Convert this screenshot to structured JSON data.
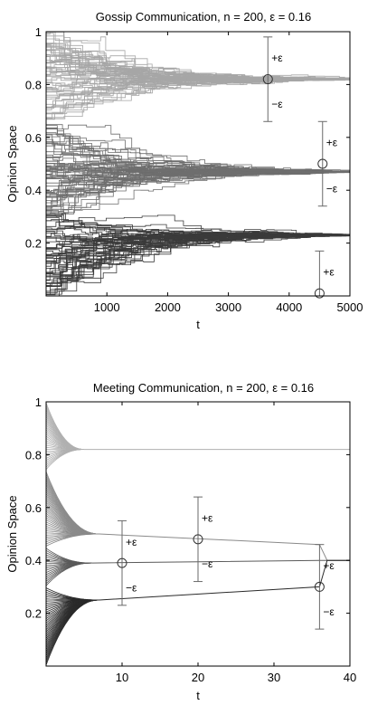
{
  "chart_data": [
    {
      "type": "line",
      "title": "Gossip Communication, n = 200, ε = 0.16",
      "xlabel": "t",
      "ylabel": "Opinion Space",
      "xlim": [
        0,
        5000
      ],
      "ylim": [
        0,
        1
      ],
      "x_ticks": [
        "1000",
        "2000",
        "3000",
        "4000",
        "5000"
      ],
      "y_ticks": [
        "0.2",
        "0.4",
        "0.6",
        "0.8",
        "1"
      ],
      "grid": false,
      "n_agents": 200,
      "clusters": [
        {
          "final_opinion": 0.82,
          "initial_range": [
            0.66,
            1.0
          ],
          "line_color": "#a6a6a6"
        },
        {
          "final_opinion": 0.47,
          "initial_range": [
            0.31,
            0.66
          ],
          "line_color": "#6e6e6e"
        },
        {
          "final_opinion": 0.23,
          "initial_range": [
            0.0,
            0.31
          ],
          "line_color": "#3a3a3a"
        }
      ],
      "interval_annotations": [
        {
          "x": 3650,
          "center": 0.82,
          "upper_label": "+ε",
          "lower_label": "−ε"
        },
        {
          "x": 4550,
          "center": 0.5,
          "upper_label": "+ε",
          "lower_label": "−ε"
        },
        {
          "x": 4500,
          "center": 0.01,
          "upper_label": "+ε",
          "lower_label": ""
        }
      ]
    },
    {
      "type": "line",
      "title": "Meeting Communication, n = 200, ε = 0.16",
      "xlabel": "t",
      "ylabel": "Opinion Space",
      "xlim": [
        0,
        40
      ],
      "ylim": [
        0,
        1
      ],
      "x_ticks": [
        "10",
        "20",
        "30",
        "40"
      ],
      "y_ticks": [
        "0.2",
        "0.4",
        "0.6",
        "0.8",
        "1"
      ],
      "grid": false,
      "n_agents": 200,
      "clusters": [
        {
          "final_opinion": 0.82,
          "converge_t": 5,
          "initial_range": [
            0.74,
            1.0
          ],
          "line_color": "#b0b0b0"
        },
        {
          "final_opinion": 0.5,
          "converge_t": 7,
          "initial_range": [
            0.45,
            0.74
          ],
          "line_color": "#8a8a8a",
          "later": [
            [
              7,
              0.5
            ],
            [
              36,
              0.46
            ]
          ]
        },
        {
          "final_opinion": 0.39,
          "converge_t": 6,
          "initial_range": [
            0.3,
            0.45
          ],
          "line_color": "#5a5a5a",
          "later": [
            [
              6,
              0.39
            ],
            [
              36,
              0.4
            ]
          ]
        },
        {
          "final_opinion": 0.25,
          "converge_t": 7,
          "initial_range": [
            0.0,
            0.3
          ],
          "line_color": "#2a2a2a",
          "later": [
            [
              7,
              0.25
            ],
            [
              36,
              0.3
            ]
          ]
        }
      ],
      "late_merge": {
        "t_start": 36,
        "t_end": 37,
        "to": 0.4
      },
      "interval_annotations": [
        {
          "x": 10,
          "center": 0.39,
          "upper_label": "+ε",
          "lower_label": "−ε"
        },
        {
          "x": 20,
          "center": 0.48,
          "upper_label": "+ε",
          "lower_label": "−ε"
        },
        {
          "x": 36,
          "center": 0.3,
          "upper_label": "+ε",
          "lower_label": "−ε"
        }
      ]
    }
  ]
}
